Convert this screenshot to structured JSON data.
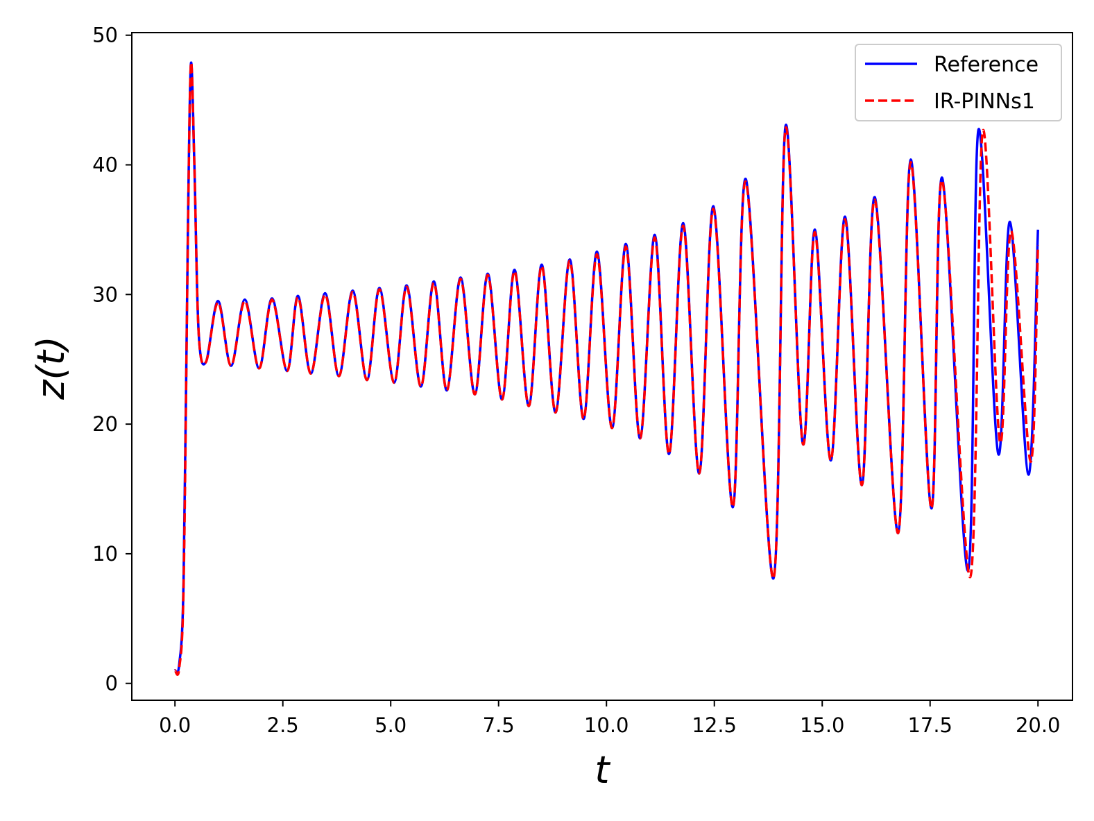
{
  "chart_data": {
    "type": "line",
    "title": "",
    "xlabel": "t",
    "ylabel": "z(t)",
    "xlim": [
      -1.0,
      20.8
    ],
    "ylim": [
      -1.3,
      50.2
    ],
    "xticks": [
      0.0,
      2.5,
      5.0,
      7.5,
      10.0,
      12.5,
      15.0,
      17.5,
      20.0
    ],
    "xtick_labels": [
      "0.0",
      "2.5",
      "5.0",
      "7.5",
      "10.0",
      "12.5",
      "15.0",
      "17.5",
      "20.0"
    ],
    "yticks": [
      0,
      10,
      20,
      30,
      40,
      50
    ],
    "ytick_labels": [
      "0",
      "10",
      "20",
      "30",
      "40",
      "50"
    ],
    "grid": false,
    "legend_position": "top-right",
    "series": [
      {
        "name": "Reference",
        "color": "#0000ff",
        "style": "solid",
        "x": [
          0.0,
          0.1,
          0.2,
          0.3,
          0.37,
          0.45,
          0.55,
          0.72,
          1.0,
          1.3,
          1.62,
          1.95,
          2.25,
          2.6,
          2.85,
          3.15,
          3.48,
          3.8,
          4.12,
          4.45,
          4.74,
          5.08,
          5.37,
          5.7,
          6.0,
          6.3,
          6.62,
          6.95,
          7.25,
          7.58,
          7.87,
          8.2,
          8.5,
          8.82,
          9.15,
          9.47,
          9.78,
          10.13,
          10.45,
          10.78,
          11.12,
          11.45,
          11.78,
          12.15,
          12.48,
          12.93,
          13.23,
          13.87,
          14.15,
          14.55,
          14.83,
          15.2,
          15.53,
          15.92,
          16.22,
          16.76,
          17.05,
          17.53,
          17.78,
          18.38,
          18.62,
          19.08,
          19.35,
          19.78,
          20.0
        ],
        "y": [
          1.0,
          1.5,
          8.0,
          35.0,
          47.8,
          40.0,
          27.0,
          24.8,
          29.5,
          24.5,
          29.6,
          24.3,
          29.7,
          24.1,
          29.9,
          23.9,
          30.1,
          23.7,
          30.3,
          23.4,
          30.5,
          23.2,
          30.7,
          22.9,
          31.0,
          22.6,
          31.3,
          22.3,
          31.6,
          21.9,
          31.9,
          21.4,
          32.3,
          20.9,
          32.7,
          20.4,
          33.3,
          19.7,
          33.9,
          18.9,
          34.6,
          17.7,
          35.5,
          16.2,
          36.8,
          13.6,
          38.9,
          8.1,
          43.0,
          18.5,
          35.0,
          17.2,
          36.0,
          15.3,
          37.5,
          11.6,
          40.4,
          13.5,
          39.0,
          8.7,
          42.7,
          17.7,
          35.6,
          16.1,
          35.0
        ]
      },
      {
        "name": "IR-PINNs1",
        "color": "#ff0000",
        "style": "dashed",
        "x": [
          0.0,
          0.1,
          0.2,
          0.3,
          0.37,
          0.45,
          0.55,
          0.72,
          1.0,
          1.3,
          1.62,
          1.95,
          2.25,
          2.6,
          2.85,
          3.15,
          3.48,
          3.8,
          4.12,
          4.45,
          4.74,
          5.08,
          5.37,
          5.7,
          6.0,
          6.3,
          6.62,
          6.95,
          7.25,
          7.58,
          7.87,
          8.2,
          8.5,
          8.82,
          9.15,
          9.47,
          9.78,
          10.13,
          10.45,
          10.78,
          11.12,
          11.45,
          11.78,
          12.15,
          12.48,
          12.93,
          13.23,
          13.87,
          14.15,
          14.55,
          14.83,
          15.2,
          15.53,
          15.92,
          16.22,
          16.76,
          17.05,
          17.53,
          17.78,
          18.43,
          18.72,
          19.12,
          19.38,
          19.83,
          20.0
        ],
        "y": [
          1.0,
          1.2,
          7.5,
          34.5,
          47.8,
          40.0,
          27.0,
          24.8,
          29.4,
          24.5,
          29.5,
          24.3,
          29.6,
          24.1,
          29.8,
          23.9,
          30.0,
          23.7,
          30.2,
          23.4,
          30.4,
          23.2,
          30.6,
          22.9,
          30.9,
          22.6,
          31.2,
          22.3,
          31.5,
          21.9,
          31.8,
          21.4,
          32.2,
          20.9,
          32.6,
          20.4,
          33.1,
          19.7,
          33.7,
          18.9,
          34.4,
          17.7,
          35.3,
          16.2,
          36.6,
          13.6,
          38.7,
          8.1,
          42.8,
          18.5,
          34.8,
          17.2,
          35.8,
          15.3,
          37.3,
          11.6,
          40.2,
          13.5,
          38.8,
          8.2,
          42.6,
          18.6,
          34.9,
          17.1,
          33.8
        ]
      }
    ]
  }
}
